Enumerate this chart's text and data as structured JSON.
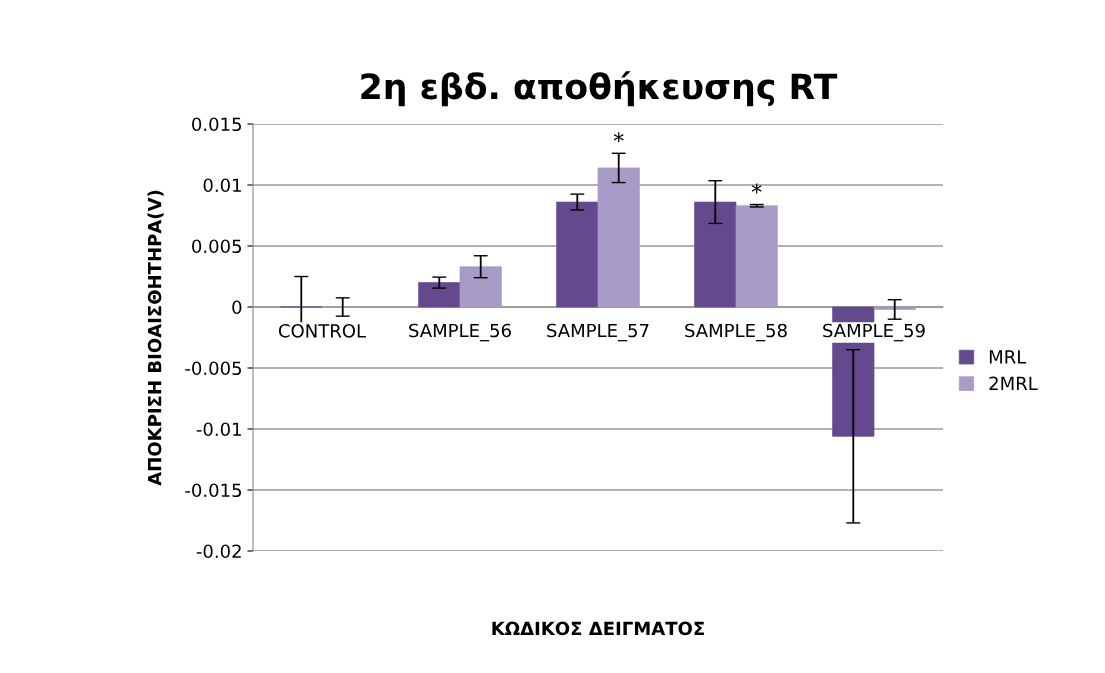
{
  "chart_data": {
    "type": "bar",
    "title": "2η εβδ. αποθήκευσης RT",
    "xlabel": "ΚΩΔΙΚΟΣ ΔΕΙΓΜΑΤΟΣ",
    "ylabel": "ΑΠΟΚΡΙΣΗ ΒΙΟΑΙΣΘΗΤΗΡΑ(V)",
    "categories": [
      "CONTROL",
      "SAMPLE_56",
      "SAMPLE_57",
      "SAMPLE_58",
      "SAMPLE_59"
    ],
    "series": [
      {
        "name": "MRL",
        "color": "#65498f",
        "values": [
          0,
          0.002,
          0.0086,
          0.0086,
          -0.0106
        ],
        "errors": [
          0.0025,
          0.00045,
          0.00065,
          0.00175,
          0.0071
        ]
      },
      {
        "name": "2MRL",
        "color": "#a99bc7",
        "values": [
          0,
          0.0033,
          0.0114,
          0.0083,
          -0.0002
        ],
        "errors": [
          0.00075,
          0.0009,
          0.0012,
          0.0001,
          0.0008
        ],
        "value_labels": [
          null,
          null,
          "*",
          "*",
          null
        ]
      }
    ],
    "ylim": [
      -0.02,
      0.015
    ],
    "yticks": [
      -0.02,
      -0.015,
      -0.01,
      -0.005,
      0,
      0.005,
      0.01,
      0.015
    ],
    "grid": "y",
    "legend": "right"
  }
}
